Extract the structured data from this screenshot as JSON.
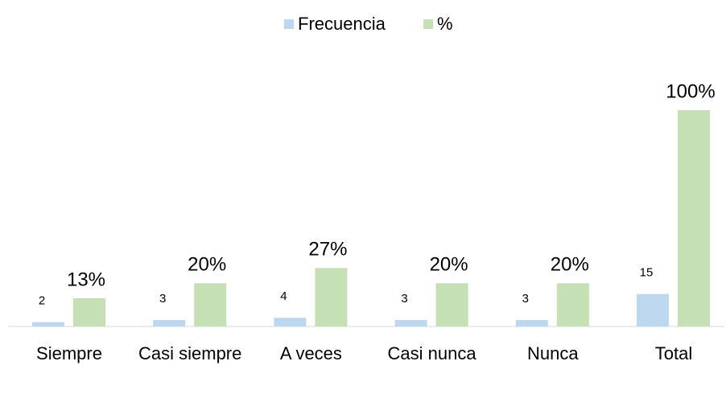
{
  "chart_data": {
    "type": "bar",
    "categories": [
      "Siempre",
      "Casi siempre",
      "A veces",
      "Casi nunca",
      "Nunca",
      "Total"
    ],
    "series": [
      {
        "name": "Frecuencia",
        "color": "#bdd7ee",
        "values": [
          2,
          3,
          4,
          3,
          3,
          15
        ]
      },
      {
        "name": "%",
        "color": "#c5e0b4",
        "values": [
          13,
          20,
          27,
          20,
          20,
          100
        ],
        "value_labels": [
          "13%",
          "20%",
          "27%",
          "20%",
          "20%",
          "100%"
        ]
      }
    ],
    "ylim": [
      0,
      100
    ],
    "legend": "top"
  }
}
